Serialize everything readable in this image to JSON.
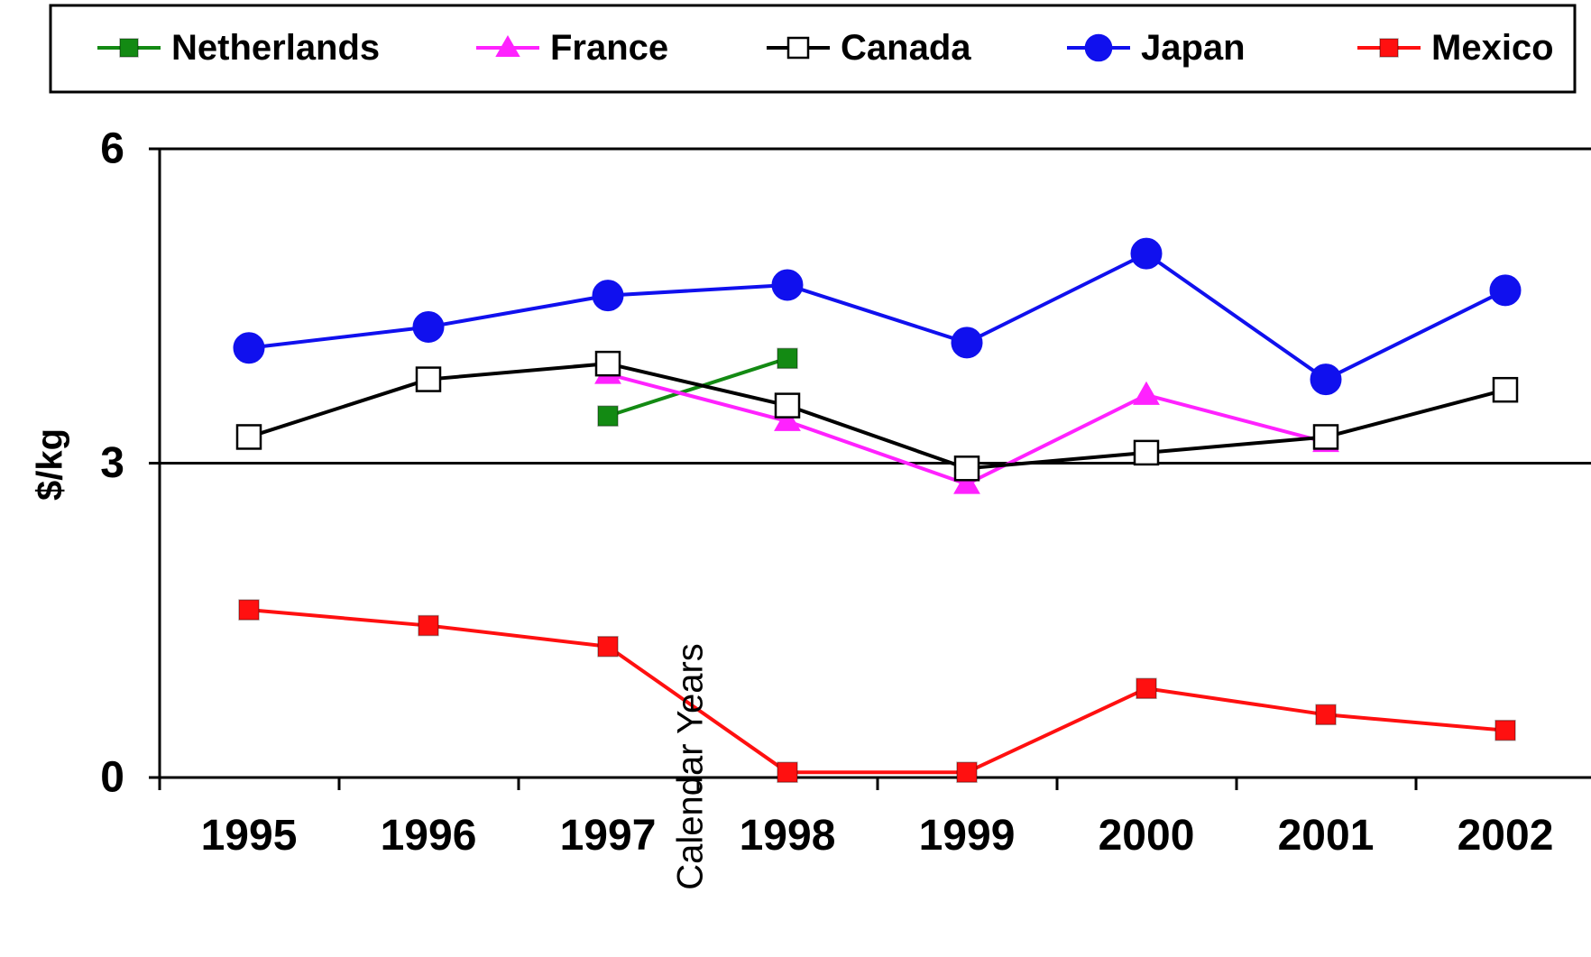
{
  "chart_data": {
    "type": "line",
    "title": "",
    "xlabel": "Calendar Years",
    "ylabel": "$/kg",
    "categories": [
      "1995",
      "1996",
      "1997",
      "1998",
      "1999",
      "2000",
      "2001",
      "2002"
    ],
    "ylim": [
      0,
      6
    ],
    "yticks": [
      "0",
      "3",
      "6"
    ],
    "grid": "horizontal line at 3",
    "legend_placement": "top",
    "series": [
      {
        "name": "Netherlands",
        "color": "#138a13",
        "marker": "square-filled",
        "values": [
          null,
          null,
          3.45,
          4.0,
          null,
          null,
          null,
          null
        ]
      },
      {
        "name": "France",
        "color": "#ff22ff",
        "marker": "triangle",
        "values": [
          null,
          null,
          3.85,
          3.4,
          2.8,
          3.65,
          3.2,
          null
        ]
      },
      {
        "name": "Canada",
        "color": "#000000",
        "marker": "square-open",
        "values": [
          3.25,
          3.8,
          3.95,
          3.55,
          2.95,
          3.1,
          3.25,
          3.7
        ]
      },
      {
        "name": "Japan",
        "color": "#1010ee",
        "marker": "circle",
        "values": [
          4.1,
          4.3,
          4.6,
          4.7,
          4.15,
          5.0,
          3.8,
          4.65
        ]
      },
      {
        "name": "Mexico",
        "color": "#ff1010",
        "marker": "square-filled",
        "values": [
          1.6,
          1.45,
          1.25,
          0.05,
          0.05,
          0.85,
          0.6,
          0.45
        ]
      }
    ]
  }
}
